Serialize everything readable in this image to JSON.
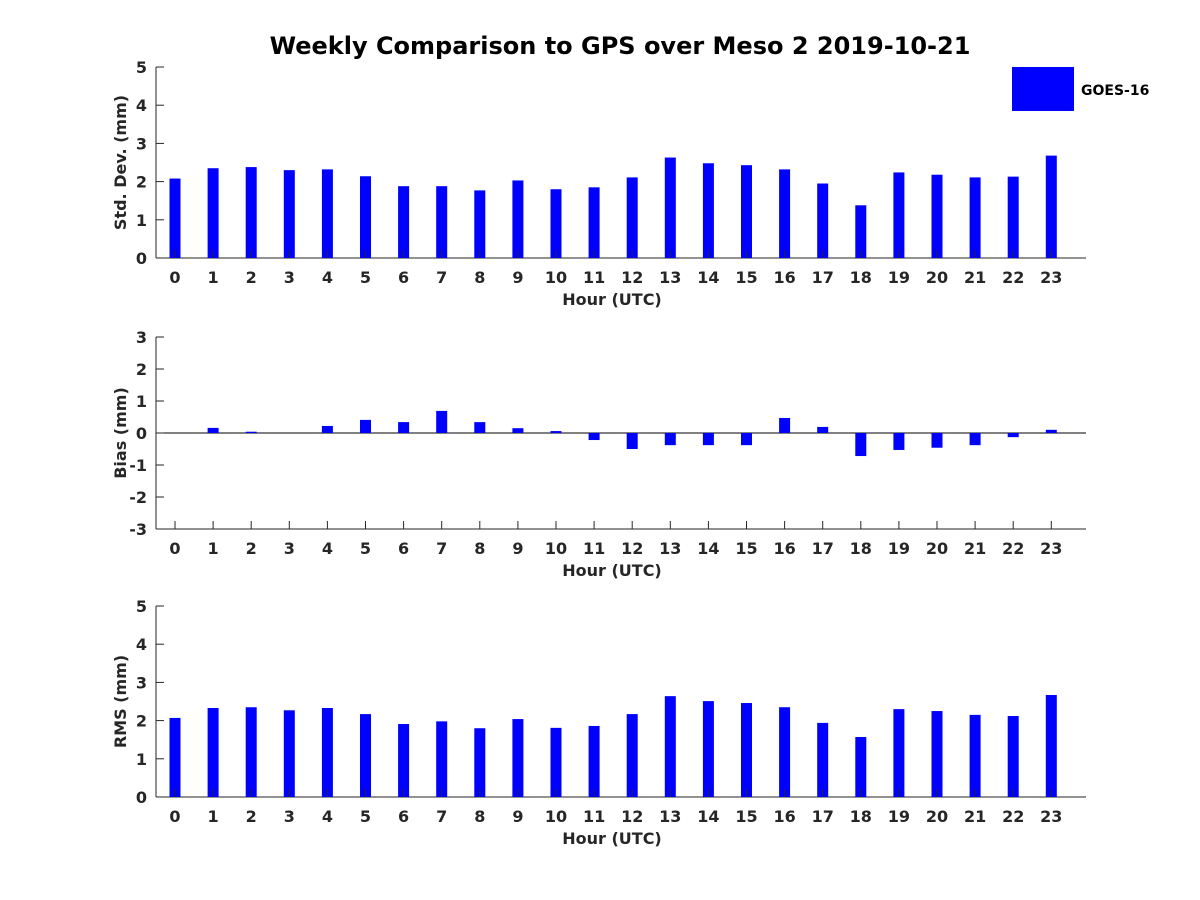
{
  "title": "Weekly Comparison to GPS over Meso 2 2019-10-21",
  "legend": {
    "label": "GOES-16",
    "placement": "top-right"
  },
  "colors": {
    "bar": "#0000ff",
    "axis": "#262626",
    "text": "#262626"
  },
  "chart_data": [
    {
      "type": "bar",
      "title": "Weekly Comparison to GPS over Meso 2 2019-10-21",
      "xlabel": "Hour (UTC)",
      "ylabel": "Std. Dev. (mm)",
      "ylim": [
        0,
        5
      ],
      "yticks": [
        0,
        1,
        2,
        3,
        4,
        5
      ],
      "categories": [
        "0",
        "1",
        "2",
        "3",
        "4",
        "5",
        "6",
        "7",
        "8",
        "9",
        "10",
        "11",
        "12",
        "13",
        "14",
        "15",
        "16",
        "17",
        "18",
        "19",
        "20",
        "21",
        "22",
        "23"
      ],
      "series": [
        {
          "name": "GOES-16",
          "values": [
            2.08,
            2.35,
            2.38,
            2.3,
            2.32,
            2.14,
            1.88,
            1.88,
            1.77,
            2.03,
            1.8,
            1.85,
            2.11,
            2.63,
            2.48,
            2.43,
            2.32,
            1.95,
            1.38,
            2.24,
            2.18,
            2.11,
            2.13,
            2.68
          ]
        }
      ],
      "grid": false
    },
    {
      "type": "bar",
      "xlabel": "Hour (UTC)",
      "ylabel": "Bias (mm)",
      "ylim": [
        -3,
        3
      ],
      "yticks": [
        -3,
        -2,
        -1,
        0,
        1,
        2,
        3
      ],
      "categories": [
        "0",
        "1",
        "2",
        "3",
        "4",
        "5",
        "6",
        "7",
        "8",
        "9",
        "10",
        "11",
        "12",
        "13",
        "14",
        "15",
        "16",
        "17",
        "18",
        "19",
        "20",
        "21",
        "22",
        "23"
      ],
      "series": [
        {
          "name": "GOES-16",
          "values": [
            0.0,
            0.16,
            0.04,
            0.0,
            0.22,
            0.41,
            0.34,
            0.69,
            0.34,
            0.15,
            0.06,
            -0.22,
            -0.5,
            -0.38,
            -0.38,
            -0.38,
            0.47,
            0.19,
            -0.72,
            -0.53,
            -0.46,
            -0.38,
            -0.13,
            0.1
          ]
        }
      ],
      "zero_line": true,
      "grid": false
    },
    {
      "type": "bar",
      "xlabel": "Hour (UTC)",
      "ylabel": "RMS (mm)",
      "ylim": [
        0,
        5
      ],
      "yticks": [
        0,
        1,
        2,
        3,
        4,
        5
      ],
      "categories": [
        "0",
        "1",
        "2",
        "3",
        "4",
        "5",
        "6",
        "7",
        "8",
        "9",
        "10",
        "11",
        "12",
        "13",
        "14",
        "15",
        "16",
        "17",
        "18",
        "19",
        "20",
        "21",
        "22",
        "23"
      ],
      "series": [
        {
          "name": "GOES-16",
          "values": [
            2.07,
            2.33,
            2.35,
            2.27,
            2.33,
            2.17,
            1.91,
            1.98,
            1.8,
            2.04,
            1.81,
            1.86,
            2.17,
            2.64,
            2.51,
            2.46,
            2.35,
            1.94,
            1.57,
            2.3,
            2.25,
            2.15,
            2.12,
            2.67
          ]
        }
      ],
      "grid": false
    }
  ]
}
